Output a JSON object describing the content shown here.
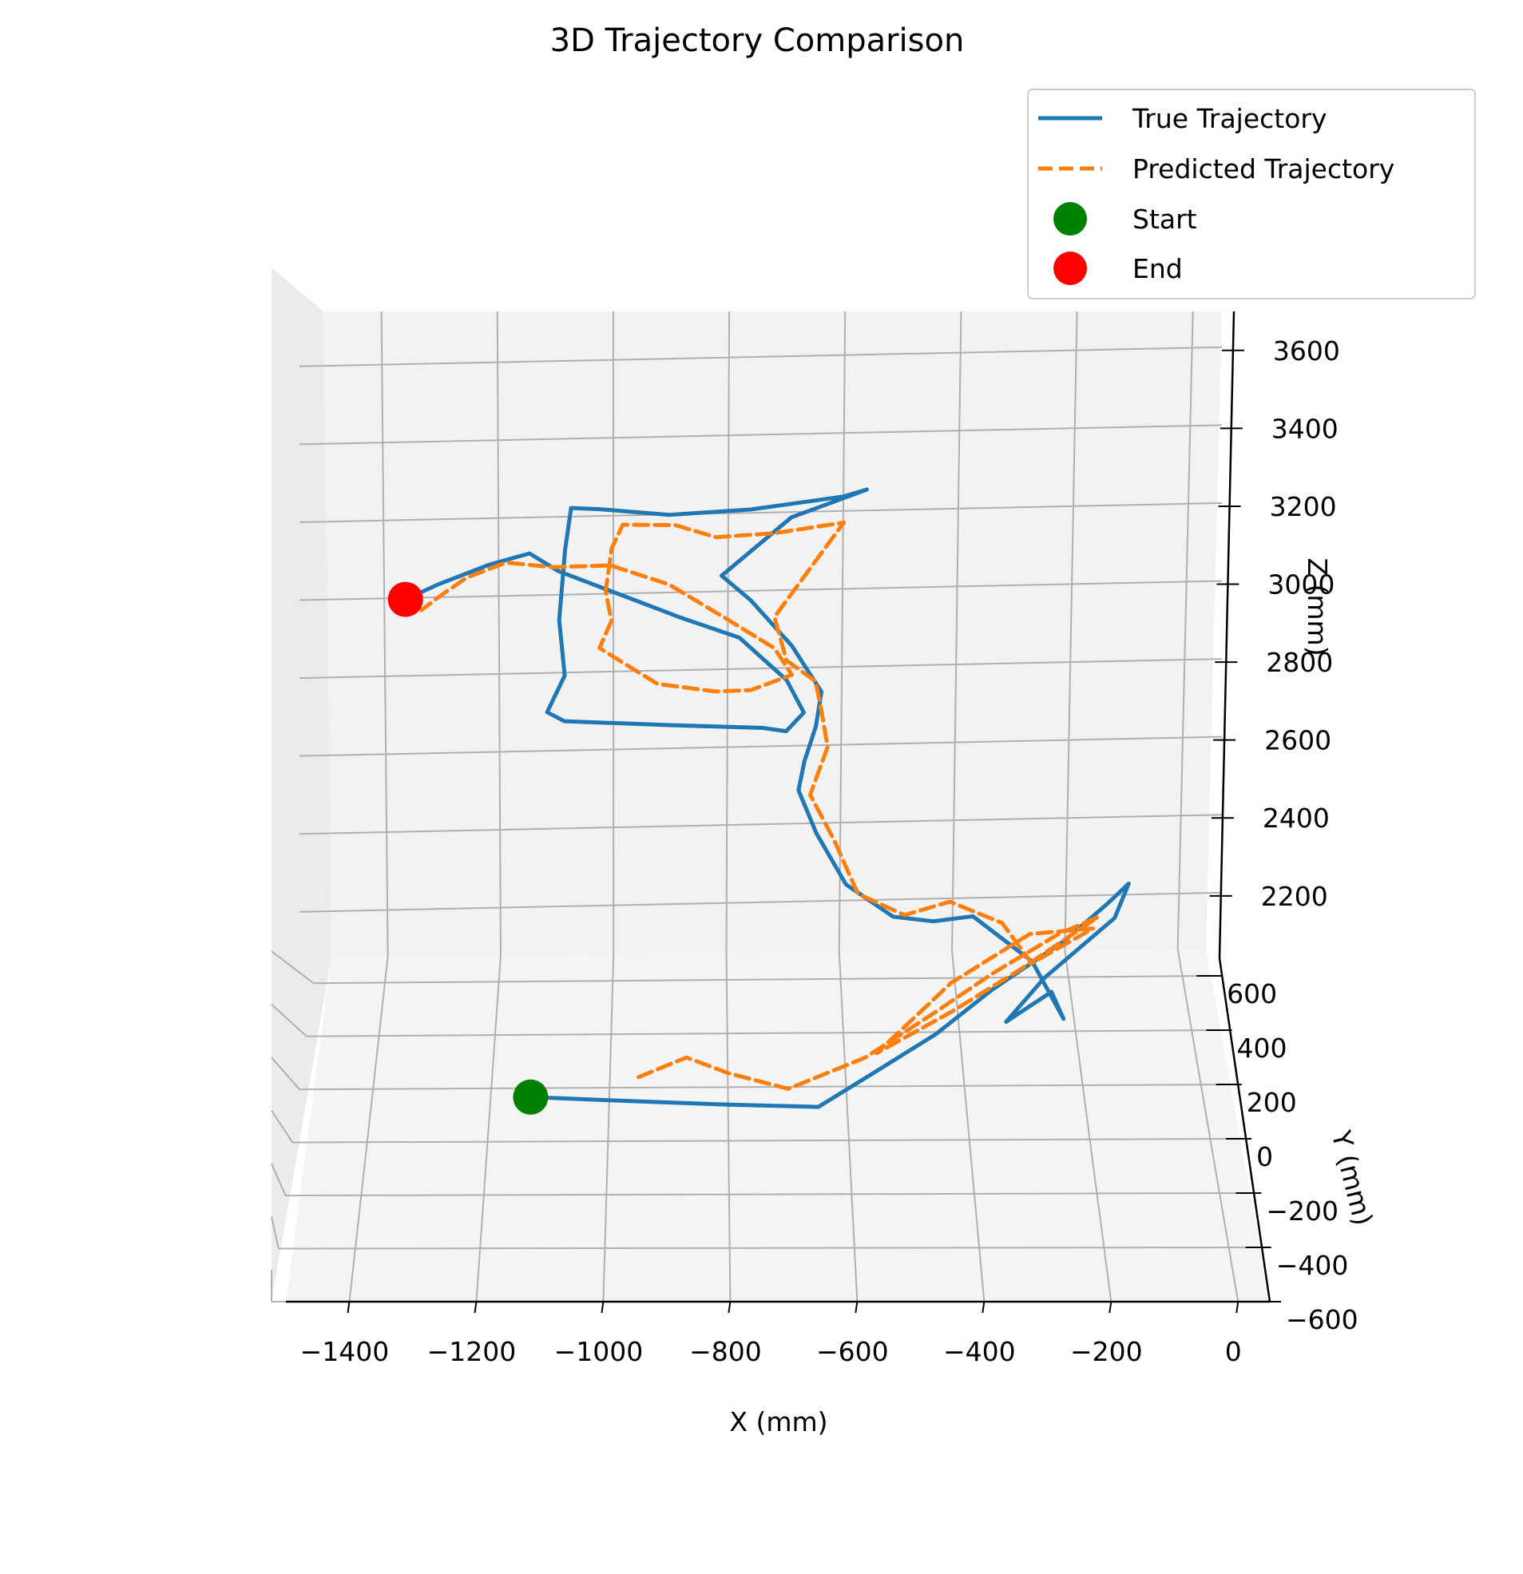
{
  "colors": {
    "true": "#1f77b4",
    "predicted": "#ff7f0e",
    "start": "#008000",
    "end": "#ff0000",
    "pane": "#f2f2f2",
    "grid": "#b0b0b0"
  },
  "chart_data": {
    "type": "line",
    "projection": "3d",
    "title": "3D Trajectory Comparison",
    "xlabel": "X (mm)",
    "ylabel": "Y (mm)",
    "zlabel": "Z (mm)",
    "xlim": [
      -1500,
      50
    ],
    "ylim": [
      -600,
      700
    ],
    "zlim": [
      2050,
      3700
    ],
    "xticks": [
      -1400,
      -1200,
      -1000,
      -800,
      -600,
      -400,
      -200,
      0
    ],
    "yticks": [
      -600,
      -400,
      -200,
      0,
      200,
      400,
      600
    ],
    "zticks": [
      2200,
      2400,
      2600,
      2800,
      3000,
      3200,
      3400,
      3600
    ],
    "xtick_labels": [
      "−1400",
      "−1200",
      "−1000",
      "−800",
      "−600",
      "−400",
      "−200",
      "0"
    ],
    "ytick_labels": [
      "−600",
      "−400",
      "−200",
      "0",
      "200",
      "400",
      "600"
    ],
    "ztick_labels": [
      "2200",
      "2400",
      "2600",
      "2800",
      "3000",
      "3200",
      "3400",
      "3600"
    ],
    "grid": true,
    "legend_position": "top-right",
    "legend": [
      "True Trajectory",
      "Predicted Trajectory",
      "Start",
      "End"
    ],
    "series": [
      {
        "name": "True Trajectory",
        "style": "solid",
        "points": [
          [
            -1130,
            60,
            2130
          ],
          [
            -1000,
            60,
            2120
          ],
          [
            -800,
            55,
            2110
          ],
          [
            -650,
            45,
            2110
          ],
          [
            -560,
            100,
            2160
          ],
          [
            -450,
            170,
            2220
          ],
          [
            -350,
            260,
            2280
          ],
          [
            -220,
            380,
            2330
          ],
          [
            -140,
            470,
            2370
          ],
          [
            -100,
            520,
            2390
          ],
          [
            -130,
            440,
            2350
          ],
          [
            -260,
            290,
            2290
          ],
          [
            -330,
            190,
            2240
          ],
          [
            -250,
            250,
            2280
          ],
          [
            -230,
            240,
            2210
          ],
          [
            -280,
            300,
            2330
          ],
          [
            -380,
            330,
            2440
          ],
          [
            -450,
            270,
            2470
          ],
          [
            -520,
            220,
            2520
          ],
          [
            -600,
            210,
            2620
          ],
          [
            -650,
            220,
            2760
          ],
          [
            -680,
            240,
            2870
          ],
          [
            -670,
            230,
            2960
          ],
          [
            -650,
            260,
            3040
          ],
          [
            -640,
            290,
            3120
          ],
          [
            -690,
            310,
            3240
          ],
          [
            -760,
            330,
            3360
          ],
          [
            -810,
            350,
            3420
          ],
          [
            -690,
            380,
            3570
          ],
          [
            -560,
            380,
            3650
          ],
          [
            -600,
            380,
            3630
          ],
          [
            -760,
            370,
            3600
          ],
          [
            -900,
            380,
            3580
          ],
          [
            -1020,
            410,
            3580
          ],
          [
            -1070,
            450,
            3560
          ],
          [
            -1080,
            430,
            3450
          ],
          [
            -1090,
            420,
            3250
          ],
          [
            -1080,
            400,
            3100
          ],
          [
            -1110,
            390,
            3000
          ],
          [
            -1080,
            380,
            2980
          ],
          [
            -900,
            360,
            2980
          ],
          [
            -740,
            330,
            2990
          ],
          [
            -700,
            300,
            3000
          ],
          [
            -670,
            290,
            3060
          ],
          [
            -700,
            250,
            3180
          ],
          [
            -780,
            270,
            3290
          ],
          [
            -880,
            300,
            3330
          ],
          [
            -1000,
            330,
            3390
          ],
          [
            -1090,
            360,
            3430
          ],
          [
            -1140,
            380,
            3470
          ],
          [
            -1210,
            410,
            3420
          ],
          [
            -1300,
            480,
            3320
          ],
          [
            -1360,
            520,
            3250
          ]
        ]
      },
      {
        "name": "Predicted Trajectory",
        "style": "dashed",
        "points": [
          [
            -950,
            80,
            2170
          ],
          [
            -870,
            100,
            2210
          ],
          [
            -800,
            80,
            2180
          ],
          [
            -700,
            60,
            2150
          ],
          [
            -570,
            110,
            2200
          ],
          [
            -450,
            200,
            2260
          ],
          [
            -350,
            280,
            2310
          ],
          [
            -230,
            380,
            2350
          ],
          [
            -160,
            430,
            2360
          ],
          [
            -300,
            310,
            2300
          ],
          [
            -420,
            230,
            2240
          ],
          [
            -550,
            140,
            2190
          ],
          [
            -420,
            260,
            2300
          ],
          [
            -280,
            380,
            2350
          ],
          [
            -170,
            400,
            2350
          ],
          [
            -280,
            320,
            2310
          ],
          [
            -330,
            330,
            2420
          ],
          [
            -420,
            320,
            2490
          ],
          [
            -500,
            240,
            2510
          ],
          [
            -580,
            200,
            2600
          ],
          [
            -620,
            220,
            2740
          ],
          [
            -660,
            250,
            2850
          ],
          [
            -630,
            260,
            2980
          ],
          [
            -640,
            280,
            3070
          ],
          [
            -650,
            290,
            3150
          ],
          [
            -700,
            260,
            3230
          ],
          [
            -720,
            300,
            3330
          ],
          [
            -600,
            370,
            3560
          ],
          [
            -720,
            370,
            3530
          ],
          [
            -820,
            370,
            3520
          ],
          [
            -890,
            380,
            3550
          ],
          [
            -980,
            400,
            3540
          ],
          [
            -1000,
            450,
            3440
          ],
          [
            -1010,
            440,
            3320
          ],
          [
            -1000,
            430,
            3240
          ],
          [
            -1020,
            400,
            3180
          ],
          [
            -980,
            380,
            3150
          ],
          [
            -920,
            360,
            3100
          ],
          [
            -820,
            340,
            3090
          ],
          [
            -760,
            330,
            3100
          ],
          [
            -690,
            320,
            3150
          ],
          [
            -720,
            300,
            3240
          ],
          [
            -800,
            290,
            3330
          ],
          [
            -900,
            310,
            3420
          ],
          [
            -1000,
            320,
            3470
          ],
          [
            -1100,
            330,
            3460
          ],
          [
            -1180,
            370,
            3450
          ],
          [
            -1250,
            430,
            3370
          ],
          [
            -1300,
            450,
            3300
          ],
          [
            -1330,
            470,
            3250
          ]
        ]
      }
    ],
    "markers": [
      {
        "name": "Start",
        "point": [
          -1130,
          60,
          2130
        ]
      },
      {
        "name": "End",
        "point": [
          -1360,
          520,
          3250
        ]
      }
    ]
  }
}
